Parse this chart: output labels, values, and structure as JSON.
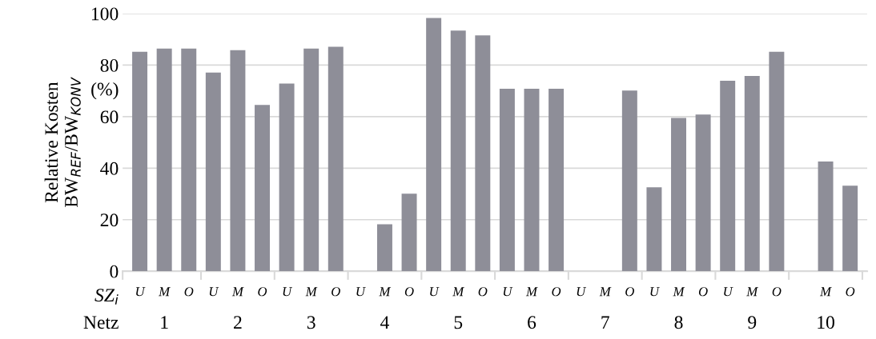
{
  "chart_data": {
    "type": "bar",
    "ylabel": "Relative Kosten\nBW$_{REF}$/BW$_{KONV}$",
    "categories": [
      "U",
      "M",
      "O",
      "U",
      "M",
      "O",
      "U",
      "M",
      "O",
      "U",
      "M",
      "O",
      "U",
      "M",
      "O",
      "U",
      "M",
      "O",
      "U",
      "M",
      "O",
      "U",
      "M",
      "O",
      "U",
      "M",
      "O",
      null,
      "M",
      "O"
    ],
    "values": [
      85.2,
      86.4,
      86.4,
      77.1,
      85.8,
      64.5,
      72.8,
      86.4,
      87.1,
      null,
      18.2,
      30.1,
      98.3,
      93.4,
      91.5,
      70.8,
      70.8,
      70.8,
      null,
      null,
      70.1,
      32.6,
      59.5,
      60.8,
      73.9,
      75.8,
      85.2,
      null,
      42.6,
      33.2
    ],
    "color": "#8e8e98",
    "ylim": [
      0,
      100
    ],
    "yticks": [
      0,
      20,
      40,
      60,
      80,
      100
    ],
    "grid": "y",
    "legend": false,
    "annotations": [
      "(%)",
      "SZ$_{i}$",
      "Netz",
      "1",
      "2",
      "3",
      "4",
      "5",
      "6",
      "7",
      "8",
      "9",
      "10"
    ]
  }
}
